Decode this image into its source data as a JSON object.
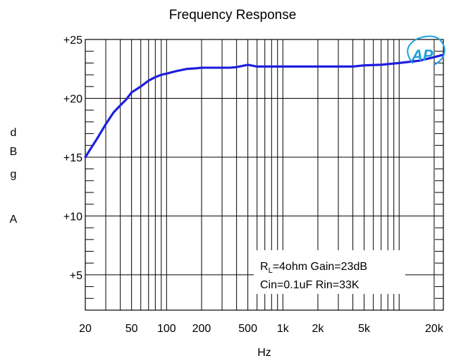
{
  "chart_data": {
    "type": "line",
    "title": "Frequency Response",
    "xlabel": "Hz",
    "ylabel_letters": [
      "d",
      "B",
      "g",
      "",
      "A"
    ],
    "x_scale": "log",
    "xlim": [
      20,
      24000
    ],
    "ylim": [
      2,
      25
    ],
    "grid": true,
    "x_tick_labels": [
      {
        "value": 20,
        "label": "20"
      },
      {
        "value": 50,
        "label": "50"
      },
      {
        "value": 100,
        "label": "100"
      },
      {
        "value": 200,
        "label": "200"
      },
      {
        "value": 500,
        "label": "500"
      },
      {
        "value": 1000,
        "label": "1k"
      },
      {
        "value": 2000,
        "label": "2k"
      },
      {
        "value": 5000,
        "label": "5k"
      },
      {
        "value": 20000,
        "label": "20k"
      }
    ],
    "y_tick_labels": [
      {
        "value": 25,
        "label": "+25"
      },
      {
        "value": 20,
        "label": "+20"
      },
      {
        "value": 15,
        "label": "+15"
      },
      {
        "value": 10,
        "label": "+10"
      },
      {
        "value": 5,
        "label": "+5"
      }
    ],
    "series": [
      {
        "color": "#1f1fdc",
        "x": [
          20,
          25,
          30,
          35,
          40,
          45,
          50,
          60,
          70,
          80,
          90,
          100,
          120,
          150,
          180,
          200,
          250,
          300,
          350,
          400,
          500,
          600,
          700,
          1000,
          2000,
          3000,
          4000,
          5000,
          7000,
          10000,
          15000,
          20000,
          24000
        ],
        "y": [
          15.0,
          16.5,
          17.8,
          18.8,
          19.4,
          19.9,
          20.5,
          21.0,
          21.5,
          21.8,
          22.0,
          22.1,
          22.3,
          22.5,
          22.55,
          22.6,
          22.6,
          22.6,
          22.6,
          22.65,
          22.85,
          22.7,
          22.7,
          22.7,
          22.7,
          22.7,
          22.7,
          22.8,
          22.85,
          23.0,
          23.2,
          23.5,
          23.7
        ]
      }
    ],
    "annotation": {
      "line1_prefix": "R",
      "line1_sub": "L",
      "line1_rest": "=4ohm Gain=23dB",
      "line2": "Cin=0.1uF Rin=33K"
    },
    "logo_text": "AP",
    "colors": {
      "line": "#1f1fdc",
      "grid": "#000000",
      "logo": "#1d9fdc"
    }
  }
}
